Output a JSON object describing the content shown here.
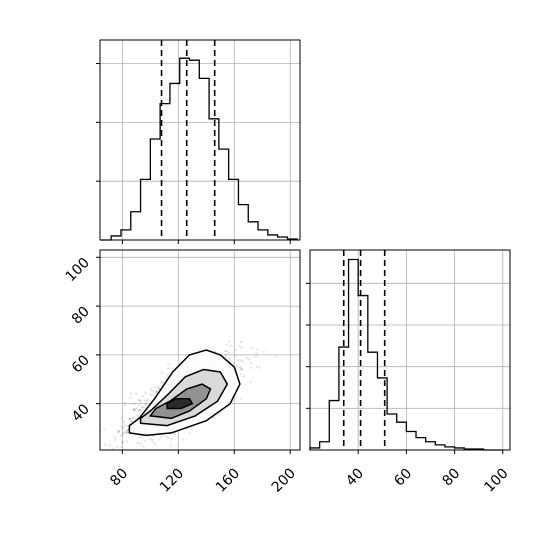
{
  "chart_data": {
    "type": "corner",
    "parameters": [
      "",
      ""
    ],
    "grid": true,
    "hist_x": {
      "type": "histogram",
      "xlim": [
        64,
        207
      ],
      "bin_edges": [
        65,
        72,
        79,
        86,
        93,
        100,
        107,
        114,
        121,
        128,
        135,
        142,
        149,
        156,
        163,
        170,
        177,
        184,
        191,
        198,
        205
      ],
      "counts": [
        0,
        4,
        10,
        28,
        60,
        100,
        135,
        155,
        180,
        178,
        160,
        120,
        90,
        60,
        35,
        18,
        10,
        5,
        3,
        1
      ],
      "quantiles": [
        108,
        126,
        146
      ],
      "yticks_visible": 3
    },
    "hist_y": {
      "type": "histogram",
      "xlim": [
        20,
        103
      ],
      "xticks": [
        40,
        60,
        80,
        100
      ],
      "bin_edges": [
        20,
        24,
        28,
        32,
        36,
        40,
        44,
        48,
        52,
        56,
        60,
        64,
        68,
        72,
        76,
        80,
        84,
        88,
        92,
        96,
        100
      ],
      "counts": [
        2,
        8,
        48,
        100,
        185,
        150,
        95,
        70,
        35,
        27,
        18,
        12,
        8,
        5,
        3,
        2,
        1,
        1,
        0,
        0
      ],
      "quantiles": [
        34,
        41,
        51
      ],
      "yticks_visible": 4
    },
    "joint": {
      "type": "scatter-contour",
      "xlim": [
        64,
        207
      ],
      "ylim": [
        21,
        103
      ],
      "xticks": [
        80,
        120,
        160,
        200
      ],
      "yticks": [
        40,
        60,
        80,
        100
      ],
      "scatter_points": 1200,
      "center": [
        124,
        40
      ],
      "contour_levels": [
        [
          [
            85,
            28
          ],
          [
            97,
            27
          ],
          [
            115,
            28
          ],
          [
            140,
            33
          ],
          [
            157,
            40
          ],
          [
            164,
            48
          ],
          [
            160,
            55
          ],
          [
            150,
            60
          ],
          [
            140,
            62
          ],
          [
            128,
            60
          ],
          [
            116,
            53
          ],
          [
            103,
            42
          ],
          [
            92,
            34
          ],
          [
            85,
            31
          ]
        ],
        [
          [
            93,
            32
          ],
          [
            112,
            31
          ],
          [
            132,
            35
          ],
          [
            148,
            41
          ],
          [
            155,
            48
          ],
          [
            150,
            53
          ],
          [
            138,
            54
          ],
          [
            125,
            51
          ],
          [
            113,
            44
          ],
          [
            100,
            37
          ],
          [
            93,
            34
          ]
        ],
        [
          [
            100,
            35
          ],
          [
            115,
            34
          ],
          [
            128,
            37
          ],
          [
            140,
            42
          ],
          [
            143,
            46
          ],
          [
            137,
            48
          ],
          [
            126,
            46
          ],
          [
            114,
            41
          ],
          [
            104,
            38
          ]
        ],
        [
          [
            112,
            38
          ],
          [
            122,
            38
          ],
          [
            130,
            40
          ],
          [
            128,
            42
          ],
          [
            118,
            42
          ],
          [
            112,
            40
          ]
        ]
      ]
    }
  }
}
